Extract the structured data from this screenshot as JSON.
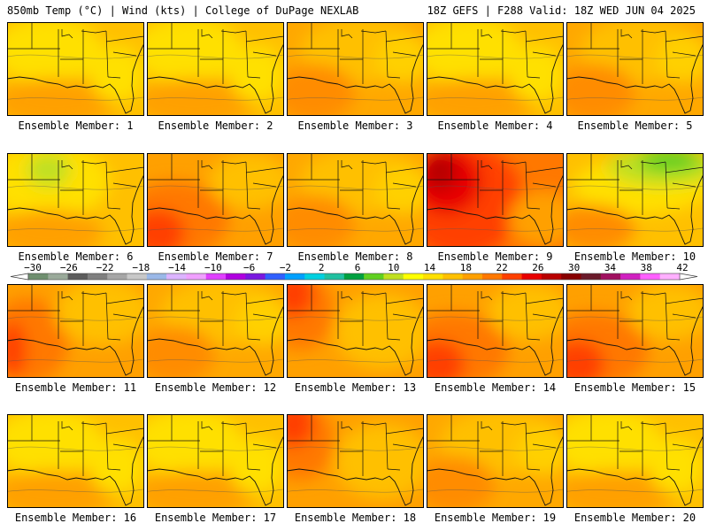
{
  "header": {
    "left": "850mb Temp (°C) | Wind (kts) | College of DuPage NEXLAB",
    "right": "18Z GEFS | F288 Valid: 18Z WED JUN 04 2025"
  },
  "colorbar": {
    "labels": [
      "−30",
      "−26",
      "−22",
      "−18",
      "−14",
      "−10",
      "−6",
      "−2",
      "2",
      "6",
      "10",
      "14",
      "18",
      "22",
      "26",
      "30",
      "34",
      "38",
      "42"
    ],
    "colors": [
      "#6f8f6f",
      "#9aaa9a",
      "#5c5c5c",
      "#7f7f7f",
      "#a6a6a6",
      "#c8c8c8",
      "#9ab8e8",
      "#dcb4ff",
      "#f0a0ff",
      "#e040ff",
      "#b000e0",
      "#7a18e0",
      "#3060ff",
      "#00a0ff",
      "#00d0e0",
      "#20c0a0",
      "#00a040",
      "#60d020",
      "#c0e020",
      "#ffff00",
      "#ffe000",
      "#ffc000",
      "#ffa000",
      "#ff7800",
      "#ff4000",
      "#e80000",
      "#b80000",
      "#880000",
      "#6a1a2a",
      "#a01060",
      "#d020c0",
      "#ff60ff",
      "#ffb0ff"
    ]
  },
  "members": [
    {
      "label": "Ensemble Member: 1",
      "scheme": "warm-yellow"
    },
    {
      "label": "Ensemble Member: 2",
      "scheme": "warm-yellow"
    },
    {
      "label": "Ensemble Member: 3",
      "scheme": "warm-orange"
    },
    {
      "label": "Ensemble Member: 4",
      "scheme": "warm-yellow"
    },
    {
      "label": "Ensemble Member: 5",
      "scheme": "warm-orange"
    },
    {
      "label": "Ensemble Member: 6",
      "scheme": "warm-yellow-green"
    },
    {
      "label": "Ensemble Member: 7",
      "scheme": "hot-southwest"
    },
    {
      "label": "Ensemble Member: 8",
      "scheme": "warm-orange"
    },
    {
      "label": "Ensemble Member: 9",
      "scheme": "very-hot"
    },
    {
      "label": "Ensemble Member: 10",
      "scheme": "cool-northeast"
    },
    {
      "label": "Ensemble Member: 11",
      "scheme": "hot-west"
    },
    {
      "label": "Ensemble Member: 12",
      "scheme": "warm-orange"
    },
    {
      "label": "Ensemble Member: 13",
      "scheme": "hot-northwest"
    },
    {
      "label": "Ensemble Member: 14",
      "scheme": "hot-southwest"
    },
    {
      "label": "Ensemble Member: 15",
      "scheme": "hot-southwest"
    },
    {
      "label": "Ensemble Member: 16",
      "scheme": "warm-yellow"
    },
    {
      "label": "Ensemble Member: 17",
      "scheme": "warm-yellow"
    },
    {
      "label": "Ensemble Member: 18",
      "scheme": "hot-northwest"
    },
    {
      "label": "Ensemble Member: 19",
      "scheme": "warm-orange"
    },
    {
      "label": "Ensemble Member: 20",
      "scheme": "warm-yellow"
    }
  ],
  "schemes": {
    "warm-yellow": {
      "base": "#ffc000",
      "blobs": [
        [
          "#ffe000",
          0.3,
          0.3,
          0.4,
          0.35
        ],
        [
          "#ffa000",
          0.35,
          0.85,
          0.45,
          0.25
        ],
        [
          "#ffe000",
          0.8,
          0.55,
          0.2,
          0.3
        ]
      ]
    },
    "warm-orange": {
      "base": "#ffa800",
      "blobs": [
        [
          "#ffc000",
          0.55,
          0.3,
          0.45,
          0.35
        ],
        [
          "#ff8c00",
          0.2,
          0.75,
          0.3,
          0.3
        ],
        [
          "#ffd000",
          0.85,
          0.4,
          0.2,
          0.25
        ]
      ]
    },
    "warm-yellow-green": {
      "base": "#ffc000",
      "blobs": [
        [
          "#ffe000",
          0.3,
          0.3,
          0.45,
          0.4
        ],
        [
          "#c0e020",
          0.3,
          0.18,
          0.16,
          0.18
        ],
        [
          "#ffa000",
          0.3,
          0.85,
          0.4,
          0.25
        ]
      ]
    },
    "hot-southwest": {
      "base": "#ffa000",
      "blobs": [
        [
          "#ff7800",
          0.2,
          0.7,
          0.4,
          0.4
        ],
        [
          "#ff4000",
          0.08,
          0.85,
          0.2,
          0.25
        ],
        [
          "#ffc000",
          0.75,
          0.3,
          0.3,
          0.3
        ]
      ]
    },
    "very-hot": {
      "base": "#ff7800",
      "blobs": [
        [
          "#ff4000",
          0.25,
          0.5,
          0.45,
          0.6
        ],
        [
          "#e80000",
          0.15,
          0.3,
          0.25,
          0.35
        ],
        [
          "#b80000",
          0.1,
          0.2,
          0.12,
          0.2
        ],
        [
          "#ffa000",
          0.85,
          0.7,
          0.25,
          0.3
        ]
      ]
    },
    "cool-northeast": {
      "base": "#ffc000",
      "blobs": [
        [
          "#ffe000",
          0.55,
          0.35,
          0.5,
          0.3
        ],
        [
          "#c0e020",
          0.7,
          0.15,
          0.4,
          0.2
        ],
        [
          "#60d020",
          0.75,
          0.08,
          0.22,
          0.12
        ],
        [
          "#ff8c00",
          0.2,
          0.8,
          0.3,
          0.25
        ]
      ]
    },
    "hot-west": {
      "base": "#ffa000",
      "blobs": [
        [
          "#ff7800",
          0.15,
          0.6,
          0.3,
          0.45
        ],
        [
          "#ff4000",
          0.04,
          0.7,
          0.1,
          0.3
        ],
        [
          "#ffc000",
          0.7,
          0.3,
          0.35,
          0.35
        ]
      ]
    },
    "hot-northwest": {
      "base": "#ffa000",
      "blobs": [
        [
          "#ff7800",
          0.1,
          0.3,
          0.25,
          0.4
        ],
        [
          "#ff4000",
          0.05,
          0.1,
          0.15,
          0.25
        ],
        [
          "#ffc000",
          0.7,
          0.5,
          0.35,
          0.4
        ]
      ]
    }
  }
}
